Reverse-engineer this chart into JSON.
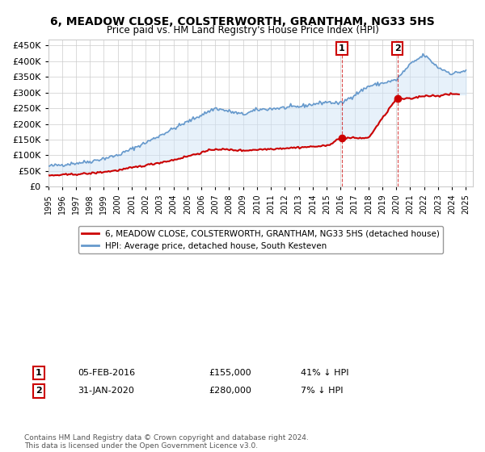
{
  "title": "6, MEADOW CLOSE, COLSTERWORTH, GRANTHAM, NG33 5HS",
  "subtitle": "Price paid vs. HM Land Registry's House Price Index (HPI)",
  "legend_property": "6, MEADOW CLOSE, COLSTERWORTH, GRANTHAM, NG33 5HS (detached house)",
  "legend_hpi": "HPI: Average price, detached house, South Kesteven",
  "annotation1_label": "1",
  "annotation1_date": "05-FEB-2016",
  "annotation1_price": "£155,000",
  "annotation1_hpi": "41% ↓ HPI",
  "annotation1_year": 2016.09,
  "annotation1_value": 155000,
  "annotation2_label": "2",
  "annotation2_date": "31-JAN-2020",
  "annotation2_price": "£280,000",
  "annotation2_hpi": "7% ↓ HPI",
  "annotation2_year": 2020.08,
  "annotation2_value": 280000,
  "copyright": "Contains HM Land Registry data © Crown copyright and database right 2024.\nThis data is licensed under the Open Government Licence v3.0.",
  "hpi_color": "#6699cc",
  "property_color": "#cc0000",
  "annotation_color": "#cc0000",
  "vline_color": "#cc0000",
  "background_color": "#ffffff",
  "grid_color": "#cccccc",
  "ylim": [
    0,
    470000
  ],
  "xlim_start": 1995,
  "xlim_end": 2025.5
}
